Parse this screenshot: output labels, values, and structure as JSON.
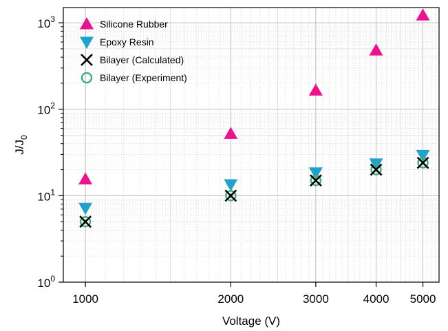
{
  "chart_data": {
    "type": "scatter",
    "xlabel": "Voltage (V)",
    "ylabel": "J/J",
    "ylabel_subscript": "0",
    "x_scale": "log",
    "y_scale": "log",
    "xlim": [
      900,
      5400
    ],
    "ylim": [
      1,
      1500
    ],
    "grid": true,
    "legend_position": "top-left",
    "x_ticks": [
      {
        "value": 1000,
        "label": "1000"
      },
      {
        "value": 2000,
        "label": "2000"
      },
      {
        "value": 3000,
        "label": "3000"
      },
      {
        "value": 4000,
        "label": "4000"
      },
      {
        "value": 5000,
        "label": "5000"
      }
    ],
    "y_ticks": [
      {
        "value": 1,
        "base": "10",
        "exp": "0"
      },
      {
        "value": 10,
        "base": "10",
        "exp": "1"
      },
      {
        "value": 100,
        "base": "10",
        "exp": "2"
      },
      {
        "value": 1000,
        "base": "10",
        "exp": "3"
      }
    ],
    "x": [
      1000,
      2000,
      3000,
      4000,
      5000
    ],
    "series": [
      {
        "name": "Silicone Rubber",
        "marker": "triangle-up",
        "color": "#ec128f",
        "values": [
          15.5,
          52,
          165,
          480,
          1220
        ]
      },
      {
        "name": "Epoxy Resin",
        "marker": "triangle-down",
        "color": "#1fa2cd",
        "values": [
          7.2,
          13.5,
          18.5,
          23.5,
          29.5
        ]
      },
      {
        "name": "Bilayer (Calculated)",
        "marker": "x",
        "color": "#000000",
        "values": [
          5.0,
          10.0,
          15.0,
          20.0,
          24.0
        ]
      },
      {
        "name": "Bilayer (Experiment)",
        "marker": "circle-open",
        "color": "#3fae7a",
        "values": [
          5.0,
          10.0,
          15.0,
          20.0,
          24.0
        ]
      }
    ]
  }
}
